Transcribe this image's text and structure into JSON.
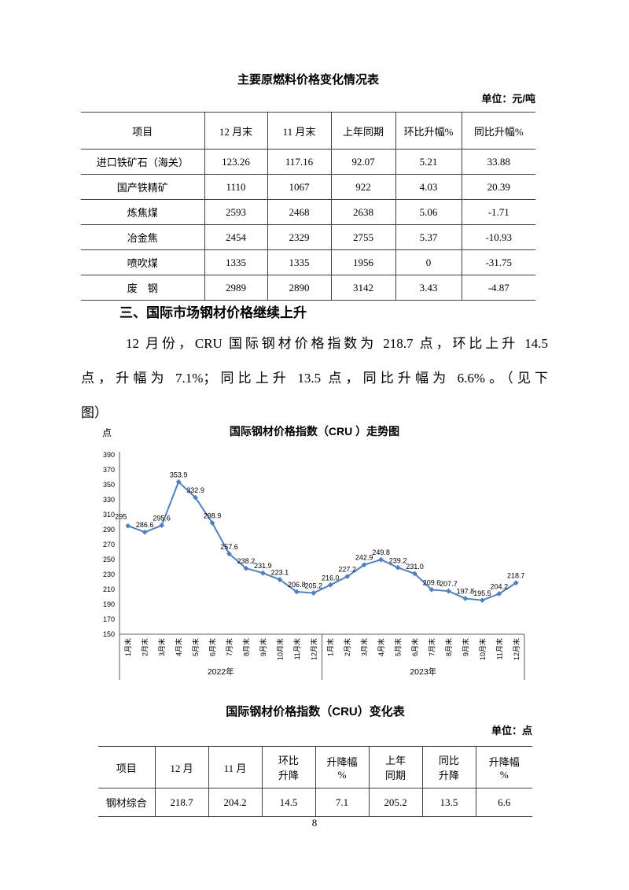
{
  "table1": {
    "title": "主要原燃料价格变化情况表",
    "unit": "单位：元/吨",
    "headers": [
      "项目",
      "12 月末",
      "11 月末",
      "上年同期",
      "环比升幅%",
      "同比升幅%"
    ],
    "rows": [
      [
        "进口铁矿石（海关）",
        "123.26",
        "117.16",
        "92.07",
        "5.21",
        "33.88"
      ],
      [
        "国产铁精矿",
        "1110",
        "1067",
        "922",
        "4.03",
        "20.39"
      ],
      [
        "炼焦煤",
        "2593",
        "2468",
        "2638",
        "5.06",
        "-1.71"
      ],
      [
        "冶金焦",
        "2454",
        "2329",
        "2755",
        "5.37",
        "-10.93"
      ],
      [
        "喷吹煤",
        "1335",
        "1335",
        "1956",
        "0",
        "-31.75"
      ],
      [
        "废　钢",
        "2989",
        "2890",
        "3142",
        "3.43",
        "-4.87"
      ]
    ]
  },
  "section": {
    "heading": "三、国际市场钢材价格继续上升",
    "paragraph_lines": [
      "12 月份，CRU 国际钢材价格指数为 218.7 点，环比上升 14.5",
      "点，升幅为 7.1%；同比上升 13.5 点，同比升幅为 6.6%。（见下",
      "图）"
    ]
  },
  "chart_data": {
    "type": "line",
    "title": "国际钢材价格指数（CRU ）走势图",
    "ylabel": "点",
    "xlabel": "",
    "ylim": [
      150,
      390
    ],
    "ytick_step": 20,
    "grid": false,
    "legend": "none",
    "line_color": "#4f81bd",
    "categories": [
      "1月末",
      "2月末",
      "3月末",
      "4月末",
      "5月末",
      "6月末",
      "7月末",
      "8月末",
      "9月末",
      "10月末",
      "11月末",
      "12月末",
      "1月末",
      "2月末",
      "3月末",
      "4月末",
      "5月末",
      "6月末",
      "7月末",
      "8月末",
      "9月末",
      "10月末",
      "11月末",
      "12月末"
    ],
    "year_groups": [
      {
        "label": "2022年",
        "start": 0,
        "count": 12
      },
      {
        "label": "2023年",
        "start": 12,
        "count": 12
      }
    ],
    "series": [
      {
        "name": "CRU国际钢材价格指数",
        "values": [
          295,
          286.6,
          295.6,
          353.9,
          332.9,
          298.9,
          257.6,
          238.2,
          231.9,
          223.1,
          206.8,
          205.2,
          216,
          227.2,
          242.9,
          249.8,
          239.2,
          231,
          209.6,
          207.7,
          197.8,
          195.5,
          204.2,
          218.7
        ],
        "labels": [
          "295",
          "286.6",
          "295.6",
          "353.9",
          "332.9",
          "298.9",
          "257.6",
          "238.2",
          "231.9",
          "223.1",
          "206.8",
          "205.2",
          "216.0",
          "227.2",
          "242.9",
          "249.8",
          "239.2",
          "231.0",
          "209.6",
          "207.7",
          "197.8",
          "195.5",
          "204.2",
          "218.7"
        ]
      }
    ]
  },
  "table2": {
    "title": "国际钢材价格指数（CRU）变化表",
    "unit": "单位：点",
    "headers": [
      "项目",
      "12 月",
      "11 月",
      "环比\n升降",
      "升降幅\n%",
      "上年\n同期",
      "同比\n升降",
      "升降幅\n%"
    ],
    "rows": [
      [
        "钢材综合",
        "218.7",
        "204.2",
        "14.5",
        "7.1",
        "205.2",
        "13.5",
        "6.6"
      ]
    ]
  },
  "page": {
    "number": "8"
  }
}
